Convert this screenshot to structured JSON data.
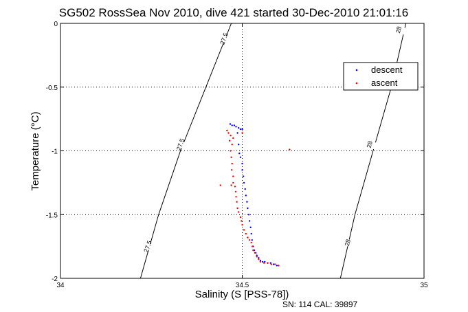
{
  "chart_data": {
    "type": "scatter",
    "title": "SG502 RossSea Nov 2010, dive 421 started 30-Dec-2010 21:01:16",
    "xlabel": "Salinity (S [PSS-78])",
    "ylabel": "Temperature (°C)",
    "xlim": [
      34,
      35
    ],
    "ylim": [
      -2,
      0
    ],
    "xticks": [
      34,
      34.5,
      35
    ],
    "xtick_labels": [
      "34",
      "34.5",
      "35"
    ],
    "yticks": [
      0,
      -0.5,
      -1,
      -1.5,
      -2
    ],
    "ytick_labels": [
      "0",
      "-0.5",
      "-1",
      "-1.5",
      "-2"
    ],
    "grid": true,
    "legend_position": "top-right",
    "footer": "SN: 114  CAL: 39897",
    "series": [
      {
        "name": "descent",
        "color": "#0000ff",
        "marker": "dot",
        "points": [
          [
            34.467,
            -0.79
          ],
          [
            34.472,
            -0.8
          ],
          [
            34.478,
            -0.8
          ],
          [
            34.483,
            -0.81
          ],
          [
            34.49,
            -0.82
          ],
          [
            34.495,
            -0.83
          ],
          [
            34.5,
            -0.83
          ],
          [
            34.487,
            -0.86
          ],
          [
            34.49,
            -0.95
          ],
          [
            34.492,
            -1.02
          ],
          [
            34.495,
            -1.05
          ],
          [
            34.5,
            -1.1
          ],
          [
            34.5,
            -1.15
          ],
          [
            34.503,
            -1.2
          ],
          [
            34.505,
            -1.25
          ],
          [
            34.508,
            -1.3
          ],
          [
            34.51,
            -1.35
          ],
          [
            34.513,
            -1.4
          ],
          [
            34.515,
            -1.45
          ],
          [
            34.518,
            -1.5
          ],
          [
            34.52,
            -1.55
          ],
          [
            34.523,
            -1.6
          ],
          [
            34.525,
            -1.65
          ],
          [
            34.527,
            -1.7
          ],
          [
            34.53,
            -1.75
          ],
          [
            34.533,
            -1.78
          ],
          [
            34.537,
            -1.8
          ],
          [
            34.54,
            -1.82
          ],
          [
            34.545,
            -1.84
          ],
          [
            34.55,
            -1.86
          ],
          [
            34.556,
            -1.87
          ],
          [
            34.562,
            -1.87
          ],
          [
            34.57,
            -1.88
          ],
          [
            34.578,
            -1.88
          ],
          [
            34.586,
            -1.89
          ],
          [
            34.595,
            -1.9
          ],
          [
            34.6,
            -1.9
          ]
        ]
      },
      {
        "name": "ascent",
        "color": "#ff0000",
        "marker": "dot",
        "points": [
          [
            34.458,
            -0.84
          ],
          [
            34.462,
            -0.86
          ],
          [
            34.468,
            -0.88
          ],
          [
            34.475,
            -0.9
          ],
          [
            34.465,
            -0.92
          ],
          [
            34.472,
            -0.95
          ],
          [
            34.468,
            -1.0
          ],
          [
            34.47,
            -1.05
          ],
          [
            34.472,
            -1.1
          ],
          [
            34.471,
            -1.15
          ],
          [
            34.475,
            -1.2
          ],
          [
            34.475,
            -1.25
          ],
          [
            34.48,
            -1.28
          ],
          [
            34.482,
            -1.32
          ],
          [
            34.483,
            -1.36
          ],
          [
            34.485,
            -1.4
          ],
          [
            34.487,
            -1.45
          ],
          [
            34.49,
            -1.48
          ],
          [
            34.495,
            -1.52
          ],
          [
            34.498,
            -1.55
          ],
          [
            34.5,
            -1.58
          ],
          [
            34.505,
            -1.62
          ],
          [
            34.51,
            -1.65
          ],
          [
            34.515,
            -1.68
          ],
          [
            34.52,
            -1.7
          ],
          [
            34.525,
            -1.72
          ],
          [
            34.528,
            -1.75
          ],
          [
            34.53,
            -1.78
          ],
          [
            34.535,
            -1.8
          ],
          [
            34.54,
            -1.83
          ],
          [
            34.545,
            -1.85
          ],
          [
            34.55,
            -1.87
          ],
          [
            34.56,
            -1.88
          ],
          [
            34.57,
            -1.88
          ],
          [
            34.58,
            -1.89
          ],
          [
            34.59,
            -1.89
          ],
          [
            34.6,
            -1.9
          ],
          [
            34.44,
            -1.27
          ],
          [
            34.47,
            -1.27
          ],
          [
            34.5,
            -0.86
          ],
          [
            34.63,
            -0.99
          ]
        ]
      }
    ],
    "isopycnals": [
      {
        "label": "27.5",
        "points": [
          [
            34.47,
            0.0
          ],
          [
            34.4,
            -0.5
          ],
          [
            34.33,
            -1.0
          ],
          [
            34.27,
            -1.5
          ],
          [
            34.22,
            -2.0
          ]
        ],
        "label_positions": [
          [
            34.45,
            -0.12
          ],
          [
            34.33,
            -0.95
          ],
          [
            34.24,
            -1.75
          ]
        ]
      },
      {
        "label": "28",
        "points": [
          [
            34.95,
            0.0
          ],
          [
            34.91,
            -0.5
          ],
          [
            34.86,
            -1.0
          ],
          [
            34.81,
            -1.5
          ],
          [
            34.77,
            -2.0
          ]
        ],
        "label_positions": [
          [
            34.93,
            -0.05
          ],
          [
            34.85,
            -0.95
          ],
          [
            34.79,
            -1.72
          ]
        ]
      }
    ]
  }
}
